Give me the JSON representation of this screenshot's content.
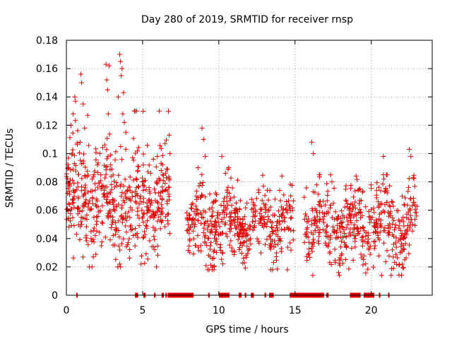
{
  "chart_data": {
    "type": "scatter",
    "title": "Day 280 of 2019, SRMTID for receiver rnsp",
    "xlabel": "GPS time / hours",
    "ylabel": "SRMTID / TECUs",
    "xlim": [
      0,
      24
    ],
    "ylim": [
      0,
      0.18
    ],
    "xticks": [
      0,
      5,
      10,
      15,
      20
    ],
    "xtick_labels": [
      "0",
      "5",
      "10",
      "15",
      "20"
    ],
    "yticks": [
      0,
      0.02,
      0.04,
      0.06,
      0.08,
      0.1,
      0.12,
      0.14,
      0.16,
      0.18
    ],
    "ytick_labels": [
      "0",
      "0.02",
      "0.04",
      "0.06",
      "0.08",
      "0.1",
      "0.12",
      "0.14",
      "0.16",
      "0.18"
    ],
    "grid": true,
    "marker": "+",
    "series": [
      {
        "name": "SRMTID",
        "color": "#e00000",
        "clusters": [
          {
            "x_range": [
              0.0,
              6.8
            ],
            "n": 520,
            "y_mean": 0.066,
            "y_sd": 0.02,
            "y_min": 0.02,
            "y_max": 0.13
          },
          {
            "x_range": [
              7.9,
              14.9
            ],
            "n": 460,
            "y_mean": 0.051,
            "y_sd": 0.014,
            "y_min": 0.018,
            "y_max": 0.09
          },
          {
            "x_range": [
              15.6,
              23.0
            ],
            "n": 480,
            "y_mean": 0.05,
            "y_sd": 0.014,
            "y_min": 0.014,
            "y_max": 0.085
          }
        ],
        "points": [
          {
            "x": 0.15,
            "y": 0.09
          },
          {
            "x": 0.3,
            "y": 0.12
          },
          {
            "x": 0.45,
            "y": 0.128
          },
          {
            "x": 0.55,
            "y": 0.14
          },
          {
            "x": 0.6,
            "y": 0.137
          },
          {
            "x": 0.9,
            "y": 0.108
          },
          {
            "x": 0.95,
            "y": 0.156
          },
          {
            "x": 1.0,
            "y": 0.15
          },
          {
            "x": 1.1,
            "y": 0.135
          },
          {
            "x": 1.2,
            "y": 0.118
          },
          {
            "x": 1.4,
            "y": 0.127
          },
          {
            "x": 2.6,
            "y": 0.163
          },
          {
            "x": 2.65,
            "y": 0.152
          },
          {
            "x": 2.7,
            "y": 0.145
          },
          {
            "x": 2.75,
            "y": 0.128
          },
          {
            "x": 2.8,
            "y": 0.162
          },
          {
            "x": 3.4,
            "y": 0.14
          },
          {
            "x": 3.5,
            "y": 0.17
          },
          {
            "x": 3.55,
            "y": 0.165
          },
          {
            "x": 3.6,
            "y": 0.155
          },
          {
            "x": 3.65,
            "y": 0.16
          },
          {
            "x": 3.7,
            "y": 0.128
          },
          {
            "x": 3.75,
            "y": 0.143
          },
          {
            "x": 3.8,
            "y": 0.122
          },
          {
            "x": 3.9,
            "y": 0.115
          },
          {
            "x": 6.75,
            "y": 0.113
          },
          {
            "x": 6.8,
            "y": 0.1
          },
          {
            "x": 8.9,
            "y": 0.118
          },
          {
            "x": 9.0,
            "y": 0.11
          },
          {
            "x": 9.1,
            "y": 0.098
          },
          {
            "x": 10.2,
            "y": 0.098
          },
          {
            "x": 16.1,
            "y": 0.108
          },
          {
            "x": 16.2,
            "y": 0.1
          },
          {
            "x": 20.8,
            "y": 0.098
          },
          {
            "x": 22.5,
            "y": 0.103
          },
          {
            "x": 22.6,
            "y": 0.098
          },
          {
            "x": 9.7,
            "y": 0.02
          },
          {
            "x": 14.5,
            "y": 0.018
          },
          {
            "x": 21.3,
            "y": 0.014
          },
          {
            "x": 3.5,
            "y": 0.022
          },
          {
            "x": 4.9,
            "y": 0.022
          }
        ],
        "zero_segments": [
          [
            0.65,
            0.7
          ],
          [
            4.5,
            4.7
          ],
          [
            5.05,
            5.2
          ],
          [
            5.75,
            5.85
          ],
          [
            6.25,
            6.4
          ],
          [
            6.5,
            6.6
          ],
          [
            6.65,
            8.35
          ],
          [
            9.3,
            9.4
          ],
          [
            10.0,
            10.7
          ],
          [
            11.3,
            11.5
          ],
          [
            11.7,
            11.8
          ],
          [
            12.1,
            12.3
          ],
          [
            13.0,
            13.1
          ],
          [
            13.3,
            13.6
          ],
          [
            14.65,
            16.9
          ],
          [
            17.05,
            17.2
          ],
          [
            18.6,
            19.3
          ],
          [
            19.5,
            20.2
          ],
          [
            20.5,
            20.6
          ],
          [
            21.1,
            21.2
          ]
        ]
      }
    ]
  }
}
